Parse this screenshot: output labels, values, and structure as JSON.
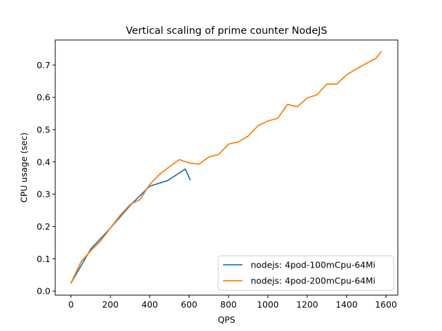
{
  "chart_data": {
    "type": "line",
    "title": "Vertical scaling of prime counter NodeJS",
    "xlabel": "QPS",
    "ylabel": "CPU usage (sec)",
    "xlim": [
      -80,
      1660
    ],
    "ylim": [
      -0.0125,
      0.7775
    ],
    "xticks": [
      0,
      200,
      400,
      600,
      800,
      1000,
      1200,
      1400,
      1600
    ],
    "yticks": [
      0.0,
      0.1,
      0.2,
      0.3,
      0.4,
      0.5,
      0.6,
      0.7
    ],
    "xtick_labels": [
      "0",
      "200",
      "400",
      "600",
      "800",
      "1000",
      "1200",
      "1400",
      "1600"
    ],
    "ytick_labels": [
      "0.0",
      "0.1",
      "0.2",
      "0.3",
      "0.4",
      "0.5",
      "0.6",
      "0.7"
    ],
    "grid": false,
    "legend_position": "lower-right",
    "series": [
      {
        "name": "nodejs: 4pod-100mCpu-64Mi",
        "color": "#1f77b4",
        "x": [
          0,
          100,
          200,
          300,
          400,
          490,
          580,
          605
        ],
        "y": [
          0.025,
          0.13,
          0.195,
          0.265,
          0.325,
          0.342,
          0.378,
          0.345
        ]
      },
      {
        "name": "nodejs: 4pod-200mCpu-64Mi",
        "color": "#ff7f0e",
        "x": [
          0,
          50,
          100,
          150,
          200,
          250,
          300,
          350,
          400,
          450,
          500,
          550,
          600,
          650,
          700,
          750,
          800,
          850,
          900,
          950,
          1000,
          1050,
          1100,
          1150,
          1200,
          1250,
          1300,
          1350,
          1400,
          1450,
          1500,
          1550,
          1575
        ],
        "y": [
          0.025,
          0.09,
          0.125,
          0.155,
          0.195,
          0.235,
          0.268,
          0.283,
          0.33,
          0.362,
          0.385,
          0.407,
          0.397,
          0.393,
          0.415,
          0.423,
          0.455,
          0.462,
          0.48,
          0.512,
          0.527,
          0.535,
          0.578,
          0.571,
          0.598,
          0.608,
          0.641,
          0.641,
          0.67,
          0.688,
          0.705,
          0.721,
          0.741
        ]
      }
    ]
  }
}
